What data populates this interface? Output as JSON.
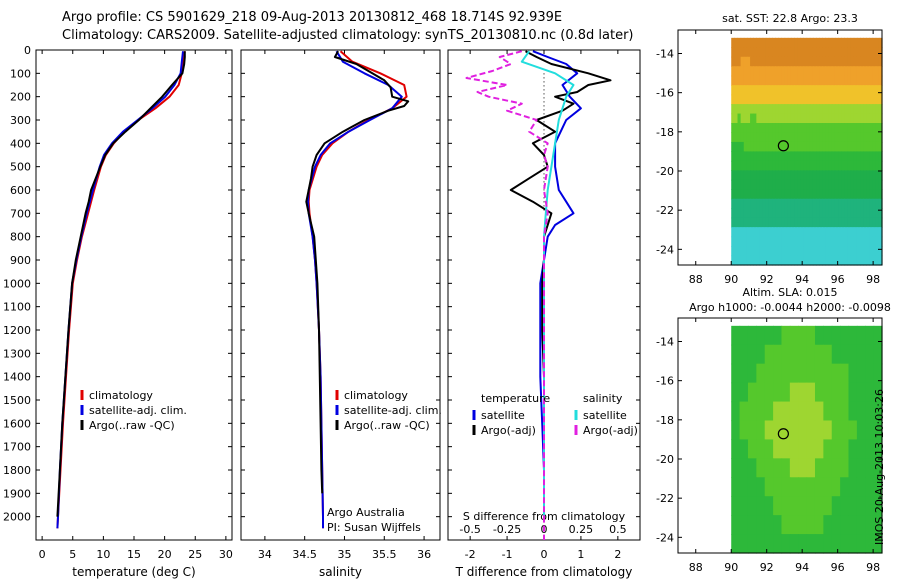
{
  "header": {
    "line1": "Argo profile: CS 5901629_218 09-Aug-2013 20130812_468 18.714S 92.939E",
    "line2": "Climatology: CARS2009. Satellite-adjusted climatology: synTS_20130810.nc (0.8d later)"
  },
  "colors": {
    "climatology": "#e00000",
    "satellite_adj": "#0000e0",
    "argo": "#000000",
    "sal_satellite": "#22dddd",
    "sal_argo": "#e020e0"
  },
  "chart_data": [
    {
      "id": "temperature",
      "type": "line",
      "xlabel": "temperature (deg C)",
      "ylabel": "",
      "xlim": [
        -1,
        31
      ],
      "xticks": [
        0,
        5,
        10,
        15,
        20,
        25,
        30
      ],
      "ylim": [
        0,
        2100
      ],
      "yticks": [
        0,
        100,
        200,
        300,
        400,
        500,
        600,
        700,
        800,
        900,
        1000,
        1100,
        1200,
        1300,
        1400,
        1500,
        1600,
        1700,
        1800,
        1900,
        2000
      ],
      "y_reversed": true,
      "legend": [
        "climatology",
        "satellite-adj. clim.",
        "Argo(..raw -QC)"
      ],
      "legend_position": "bottom-right",
      "series": [
        {
          "name": "climatology",
          "color": "#e00000",
          "depth": [
            5,
            50,
            100,
            150,
            200,
            250,
            300,
            350,
            400,
            450,
            500,
            600,
            650,
            700,
            800,
            900,
            1000,
            1200,
            1400,
            1600,
            1800,
            2000,
            2050
          ],
          "values": [
            23.3,
            23.0,
            22.8,
            22.3,
            20.8,
            18.5,
            15.7,
            13.4,
            11.7,
            10.4,
            9.6,
            8.5,
            8.0,
            7.5,
            6.5,
            5.7,
            5.0,
            4.4,
            3.9,
            3.4,
            3.0,
            2.6,
            2.5
          ]
        },
        {
          "name": "satellite-adj. clim.",
          "color": "#0000e0",
          "depth": [
            5,
            50,
            100,
            150,
            200,
            250,
            300,
            350,
            400,
            450,
            500,
            600,
            650,
            700,
            800,
            900,
            1000,
            1200,
            1400,
            1600,
            1800,
            2000,
            2050
          ],
          "values": [
            23.0,
            22.8,
            22.6,
            21.6,
            20.1,
            18.0,
            15.6,
            13.2,
            11.4,
            10.1,
            9.4,
            8.3,
            7.8,
            7.3,
            6.4,
            5.6,
            4.9,
            4.3,
            3.8,
            3.3,
            2.9,
            2.6,
            2.5
          ]
        },
        {
          "name": "Argo(..raw -QC)",
          "color": "#000000",
          "depth": [
            5,
            30,
            60,
            100,
            150,
            200,
            250,
            300,
            350,
            400,
            450,
            500,
            600,
            650,
            700,
            800,
            900,
            1000,
            1200,
            1400,
            1600,
            1800,
            2000
          ],
          "values": [
            23.3,
            23.3,
            23.2,
            22.9,
            21.2,
            19.6,
            17.7,
            15.8,
            13.6,
            11.6,
            10.3,
            9.5,
            8.0,
            7.6,
            7.1,
            6.3,
            5.5,
            4.9,
            4.3,
            3.8,
            3.3,
            2.9,
            2.5
          ]
        }
      ]
    },
    {
      "id": "salinity",
      "type": "line",
      "xlabel": "salinity",
      "ylabel": "",
      "xlim": [
        33.7,
        36.2
      ],
      "xticks": [
        34,
        34.5,
        35,
        35.5,
        36
      ],
      "ylim": [
        0,
        2100
      ],
      "y_reversed": true,
      "legend": [
        "climatology",
        "satellite-adj. clim.",
        "Argo(..raw -QC)"
      ],
      "legend_position": "bottom-right",
      "annotation": [
        "Argo Australia",
        "PI: Susan Wijffels"
      ],
      "series": [
        {
          "name": "climatology",
          "color": "#e00000",
          "depth": [
            5,
            50,
            100,
            150,
            200,
            250,
            300,
            350,
            400,
            450,
            500,
            600,
            650,
            700,
            800,
            900,
            1000,
            1200,
            1400,
            1600,
            1800,
            2000,
            2050
          ],
          "values": [
            34.95,
            35.1,
            35.45,
            35.75,
            35.78,
            35.6,
            35.3,
            35.05,
            34.85,
            34.72,
            34.65,
            34.56,
            34.55,
            34.56,
            34.6,
            34.63,
            34.65,
            34.68,
            34.7,
            34.71,
            34.72,
            34.73,
            34.73
          ]
        },
        {
          "name": "satellite-adj. clim.",
          "color": "#0000e0",
          "depth": [
            5,
            50,
            100,
            150,
            200,
            250,
            300,
            350,
            400,
            450,
            500,
            600,
            650,
            700,
            800,
            900,
            1000,
            1200,
            1400,
            1600,
            1800,
            2000,
            2050
          ],
          "values": [
            34.9,
            34.98,
            35.25,
            35.55,
            35.72,
            35.6,
            35.32,
            35.05,
            34.82,
            34.7,
            34.63,
            34.55,
            34.54,
            34.55,
            34.6,
            34.63,
            34.65,
            34.68,
            34.7,
            34.71,
            34.72,
            34.73,
            34.73
          ]
        },
        {
          "name": "Argo(..raw -QC)",
          "color": "#000000",
          "depth": [
            5,
            30,
            60,
            100,
            130,
            160,
            200,
            220,
            240,
            260,
            300,
            350,
            400,
            450,
            500,
            550,
            600,
            650,
            700,
            800,
            900,
            1000,
            1200,
            1400,
            1600,
            1800,
            1900
          ],
          "values": [
            34.92,
            34.88,
            35.15,
            35.35,
            35.5,
            35.58,
            35.6,
            35.8,
            35.75,
            35.55,
            35.25,
            34.98,
            34.75,
            34.65,
            34.6,
            34.58,
            34.55,
            34.52,
            34.55,
            34.62,
            34.64,
            34.66,
            34.68,
            34.69,
            34.7,
            34.71,
            34.72
          ]
        }
      ]
    },
    {
      "id": "difference",
      "type": "line",
      "xlabel": "T difference from climatology",
      "xlabel_top": "S difference from climatology",
      "xlim": [
        -2.6,
        2.6
      ],
      "xticks_T": [
        -2,
        -1,
        0,
        1,
        2
      ],
      "xticks_S": [
        "-0.5",
        "-0.25",
        "0",
        "0.25",
        "0.5"
      ],
      "xticks_S_pos": [
        -2,
        -1,
        0,
        1,
        2
      ],
      "ylim": [
        0,
        2100
      ],
      "y_reversed": true,
      "legend_headers": [
        "temperature",
        "salinity"
      ],
      "legend": [
        "satellite",
        "Argo(-adj)",
        "satellite",
        "Argo(-adj)"
      ],
      "legend_position": "bottom",
      "series": [
        {
          "name": "satellite",
          "group": "temperature",
          "color": "#0000e0",
          "depth": [
            5,
            30,
            60,
            100,
            150,
            200,
            250,
            300,
            400,
            500,
            600,
            650,
            700,
            750,
            800,
            900,
            1000,
            1200,
            1400,
            1600,
            1800,
            2000
          ],
          "values": [
            -0.3,
            0.1,
            0.6,
            0.9,
            0.5,
            0.7,
            1.0,
            0.6,
            0.3,
            0.3,
            0.4,
            0.6,
            0.8,
            0.3,
            0.1,
            0.0,
            -0.1,
            -0.1,
            -0.1,
            -0.05,
            0.0,
            0.0
          ]
        },
        {
          "name": "Argo(-adj)",
          "group": "temperature",
          "color": "#000000",
          "depth": [
            5,
            30,
            60,
            100,
            130,
            150,
            180,
            200,
            230,
            260,
            300,
            350,
            400,
            450,
            500,
            550,
            600,
            650,
            700,
            800,
            900,
            1000,
            1200,
            1400,
            1600,
            1800,
            1950
          ],
          "values": [
            -0.5,
            -0.2,
            0.2,
            1.2,
            1.8,
            1.2,
            0.9,
            0.3,
            0.8,
            0.5,
            -0.2,
            0.3,
            -0.3,
            0.0,
            0.1,
            -0.4,
            -0.9,
            -0.3,
            0.2,
            0.0,
            0.0,
            -0.05,
            -0.05,
            0.0,
            0.0,
            0.0,
            0.0
          ]
        },
        {
          "name": "satellite",
          "group": "salinity",
          "color": "#22dddd",
          "depth": [
            5,
            50,
            100,
            150,
            200,
            250,
            300,
            400,
            500,
            600,
            700,
            800,
            900,
            1000,
            1200,
            1400,
            1600,
            1800,
            2000
          ],
          "values": [
            -0.4,
            -0.6,
            0.3,
            0.8,
            0.6,
            0.5,
            0.4,
            0.3,
            0.2,
            0.1,
            0.05,
            0.0,
            0.0,
            0.0,
            0.0,
            0.0,
            0.0,
            0.0,
            0.0
          ]
        },
        {
          "name": "Argo(-adj)",
          "group": "salinity",
          "color": "#e020e0",
          "depth": [
            5,
            30,
            60,
            90,
            120,
            150,
            180,
            200,
            230,
            260,
            300,
            350,
            400,
            450,
            500,
            600,
            700,
            800,
            1000,
            1200,
            1400,
            1600,
            1800,
            2000
          ],
          "values": [
            -0.6,
            -1.2,
            -0.9,
            -1.4,
            -2.1,
            -1.0,
            -1.8,
            -1.5,
            -0.6,
            -1.0,
            -0.2,
            -0.4,
            0.1,
            0.0,
            0.1,
            0.0,
            0.1,
            0.0,
            0.0,
            0.0,
            0.0,
            0.0,
            0.0,
            0.0
          ]
        }
      ]
    },
    {
      "id": "sst_map",
      "type": "heatmap",
      "title": "sat. SST: 22.8  Argo: 23.3",
      "xlim": [
        87,
        98.5
      ],
      "xticks": [
        88,
        90,
        92,
        94,
        96,
        98
      ],
      "ylim": [
        -24.8,
        -12.8
      ],
      "yticks": [
        -14,
        -16,
        -18,
        -20,
        -22,
        -24
      ],
      "data_lon_range": [
        90,
        98.5
      ],
      "data_lat_range": [
        -24.8,
        -13.2
      ],
      "argo_location": [
        92.94,
        -18.71
      ],
      "rows_north_to_south": [
        "999999999999999999999999999999999999999999999999",
        "999999999999999999999999999999999999999999999999",
        "999888999999999999999999999999999999999999999999",
        "888888888888888888888888888888888888888888888888",
        "888888888888888888888888888888888888888888888888",
        "777777777777777777777777777777777777777777777777",
        "777777777777777777777777777777777777777777777777",
        "666666666666666666666666666666666666666666666666",
        "665666556666666666666666666666666666666666666666",
        "555555555555555555555555555555555555555555555555",
        "555555555555555555555555555555555555555555555555",
        "444455555555555555555555555555555555555555555555",
        "444444444444444444444444444444444444444444444444",
        "444444444444444444444444444444444444444444444444",
        "333333333333333333333333333333333333333333333333",
        "333333333333333333333333333333333333333333333333",
        "333333333333333333333333333333333333333333333333",
        "222222222222222222222222222222222222222222222222",
        "222222222222222222222222222222222222222222222222",
        "222222222222222222222222222222222222222222222222",
        "111111111111111111111111111111111111111111111111",
        "111111111111111111111111111111111111111111111111",
        "111111111111111111111111111111111111111111111111",
        "111111111111111111111111111111111111111111111111"
      ],
      "palette": [
        "#1ec8ee",
        "#3ccfd0",
        "#1fb37c",
        "#1fae4a",
        "#2db83a",
        "#55c82c",
        "#9ed631",
        "#f0c22a",
        "#efa12a",
        "#d98620"
      ]
    },
    {
      "id": "sla_map",
      "type": "heatmap",
      "title": "Altim. SLA: 0.015",
      "subtitle": "Argo h1000: -0.0044 h2000: -0.0098",
      "xlim": [
        87,
        98.5
      ],
      "xticks": [
        88,
        90,
        92,
        94,
        96,
        98
      ],
      "ylim": [
        -24.8,
        -12.8
      ],
      "yticks": [
        -14,
        -16,
        -18,
        -20,
        -22,
        -24
      ],
      "data_lon_range": [
        90,
        98.5
      ],
      "data_lat_range": [
        -24.8,
        -13.2
      ],
      "argo_location": [
        92.94,
        -18.71
      ],
      "rows_north_to_south": [
        "444444555544444444",
        "444455555555444444",
        "444555555555554444",
        "445555566655554444",
        "455556666665554444",
        "455566666666555444",
        "445556666665554444",
        "444555566655554444",
        "444455555555544444",
        "444445555555444444",
        "444444555554444444",
        "444444444444444444"
      ],
      "palette": [
        "#1ec8ee",
        "#3ccfd0",
        "#1fb37c",
        "#1fae4a",
        "#2db83a",
        "#55c82c",
        "#9ed631",
        "#f0c22a",
        "#efa12a",
        "#d98620"
      ]
    }
  ],
  "watermark": "IMOS 20-Aug-2013 10:03:26"
}
